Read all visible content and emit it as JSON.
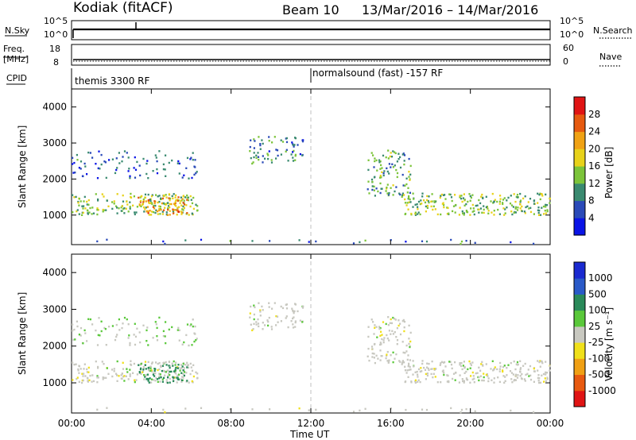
{
  "header": {
    "station": "Kodiak (fitACF)",
    "beam": "Beam 10",
    "dates": "13/Mar/2016 – 14/Mar/2016"
  },
  "aux": {
    "nsky_label": "N.Sky",
    "nsky_ticks": [
      "10^5",
      "10^0"
    ],
    "nsearch_label": "N.Search",
    "nsearch_ticks": [
      "10^5",
      "10^0"
    ],
    "freq_label_1": "Freq.",
    "freq_label_2": "[MHz]",
    "freq_ticks": [
      "18",
      "8"
    ],
    "nave_label": "Nave",
    "nave_ticks": [
      "60",
      "0"
    ],
    "cpid_label": "CPID",
    "cpid_first": "themis 3300 RF",
    "cpid_second": "normalsound (fast) -157 RF"
  },
  "panels": {
    "power_ylabel": "Slant Range [km]",
    "velocity_ylabel": "Slant Range [km]",
    "y_ticks": [
      "1000",
      "2000",
      "3000",
      "4000"
    ],
    "x_ticks": [
      "00:00",
      "04:00",
      "08:00",
      "12:00",
      "16:00",
      "20:00",
      "00:00"
    ],
    "x_label": "Time UT"
  },
  "colorbars": {
    "power_label": "Power [dB]",
    "power_ticks": [
      "4",
      "8",
      "12",
      "16",
      "20",
      "24",
      "28"
    ],
    "power_colors": [
      "#0a14e6",
      "#2a4ab8",
      "#3a8a70",
      "#7cc43a",
      "#e8d21a",
      "#f0a214",
      "#e65a10",
      "#e01414"
    ],
    "velocity_label": "Velocity [m s⁻¹]",
    "velocity_ticks": [
      "1000",
      "500",
      "100",
      "25",
      "-25",
      "-100",
      "-500",
      "-1000"
    ],
    "velocity_colors": [
      "#1a2ad0",
      "#2a5ac8",
      "#2a8a5a",
      "#5ac83a",
      "#c8c8c0",
      "#f0e01a",
      "#f0a014",
      "#e85a10",
      "#e01414"
    ]
  },
  "chart_data": {
    "type": "heatmap",
    "title": "Kodiak (fitACF) Beam 10 13/Mar/2016 – 14/Mar/2016",
    "xlabel": "Time UT",
    "ylabel": "Slant Range [km]",
    "xlim_hours": [
      0,
      24
    ],
    "ylim_km": [
      180,
      4500
    ],
    "grid": false,
    "regions": [
      {
        "t0": 0.0,
        "t1": 6.3,
        "r0": 1000,
        "r1": 1600,
        "power_db": 14,
        "velocity": 0,
        "density": 0.9
      },
      {
        "t0": 0.0,
        "t1": 6.3,
        "r0": 2000,
        "r1": 2800,
        "power_db": 8,
        "velocity": 20,
        "density": 0.3
      },
      {
        "t0": 3.3,
        "t1": 5.8,
        "r0": 1000,
        "r1": 1500,
        "power_db": 22,
        "velocity": 80,
        "density": 0.9
      },
      {
        "t0": 8.7,
        "t1": 11.6,
        "r0": 2400,
        "r1": 3200,
        "power_db": 10,
        "velocity": 0,
        "density": 0.5
      },
      {
        "t0": 14.8,
        "t1": 17.0,
        "r0": 1500,
        "r1": 2800,
        "power_db": 12,
        "velocity": 0,
        "density": 0.6
      },
      {
        "t0": 16.5,
        "t1": 24.0,
        "r0": 1000,
        "r1": 1600,
        "power_db": 14,
        "velocity": 0,
        "density": 0.9
      },
      {
        "t0": 0.0,
        "t1": 24.0,
        "r0": 200,
        "r1": 320,
        "power_db": 10,
        "velocity": 0,
        "density": 0.15
      }
    ]
  }
}
